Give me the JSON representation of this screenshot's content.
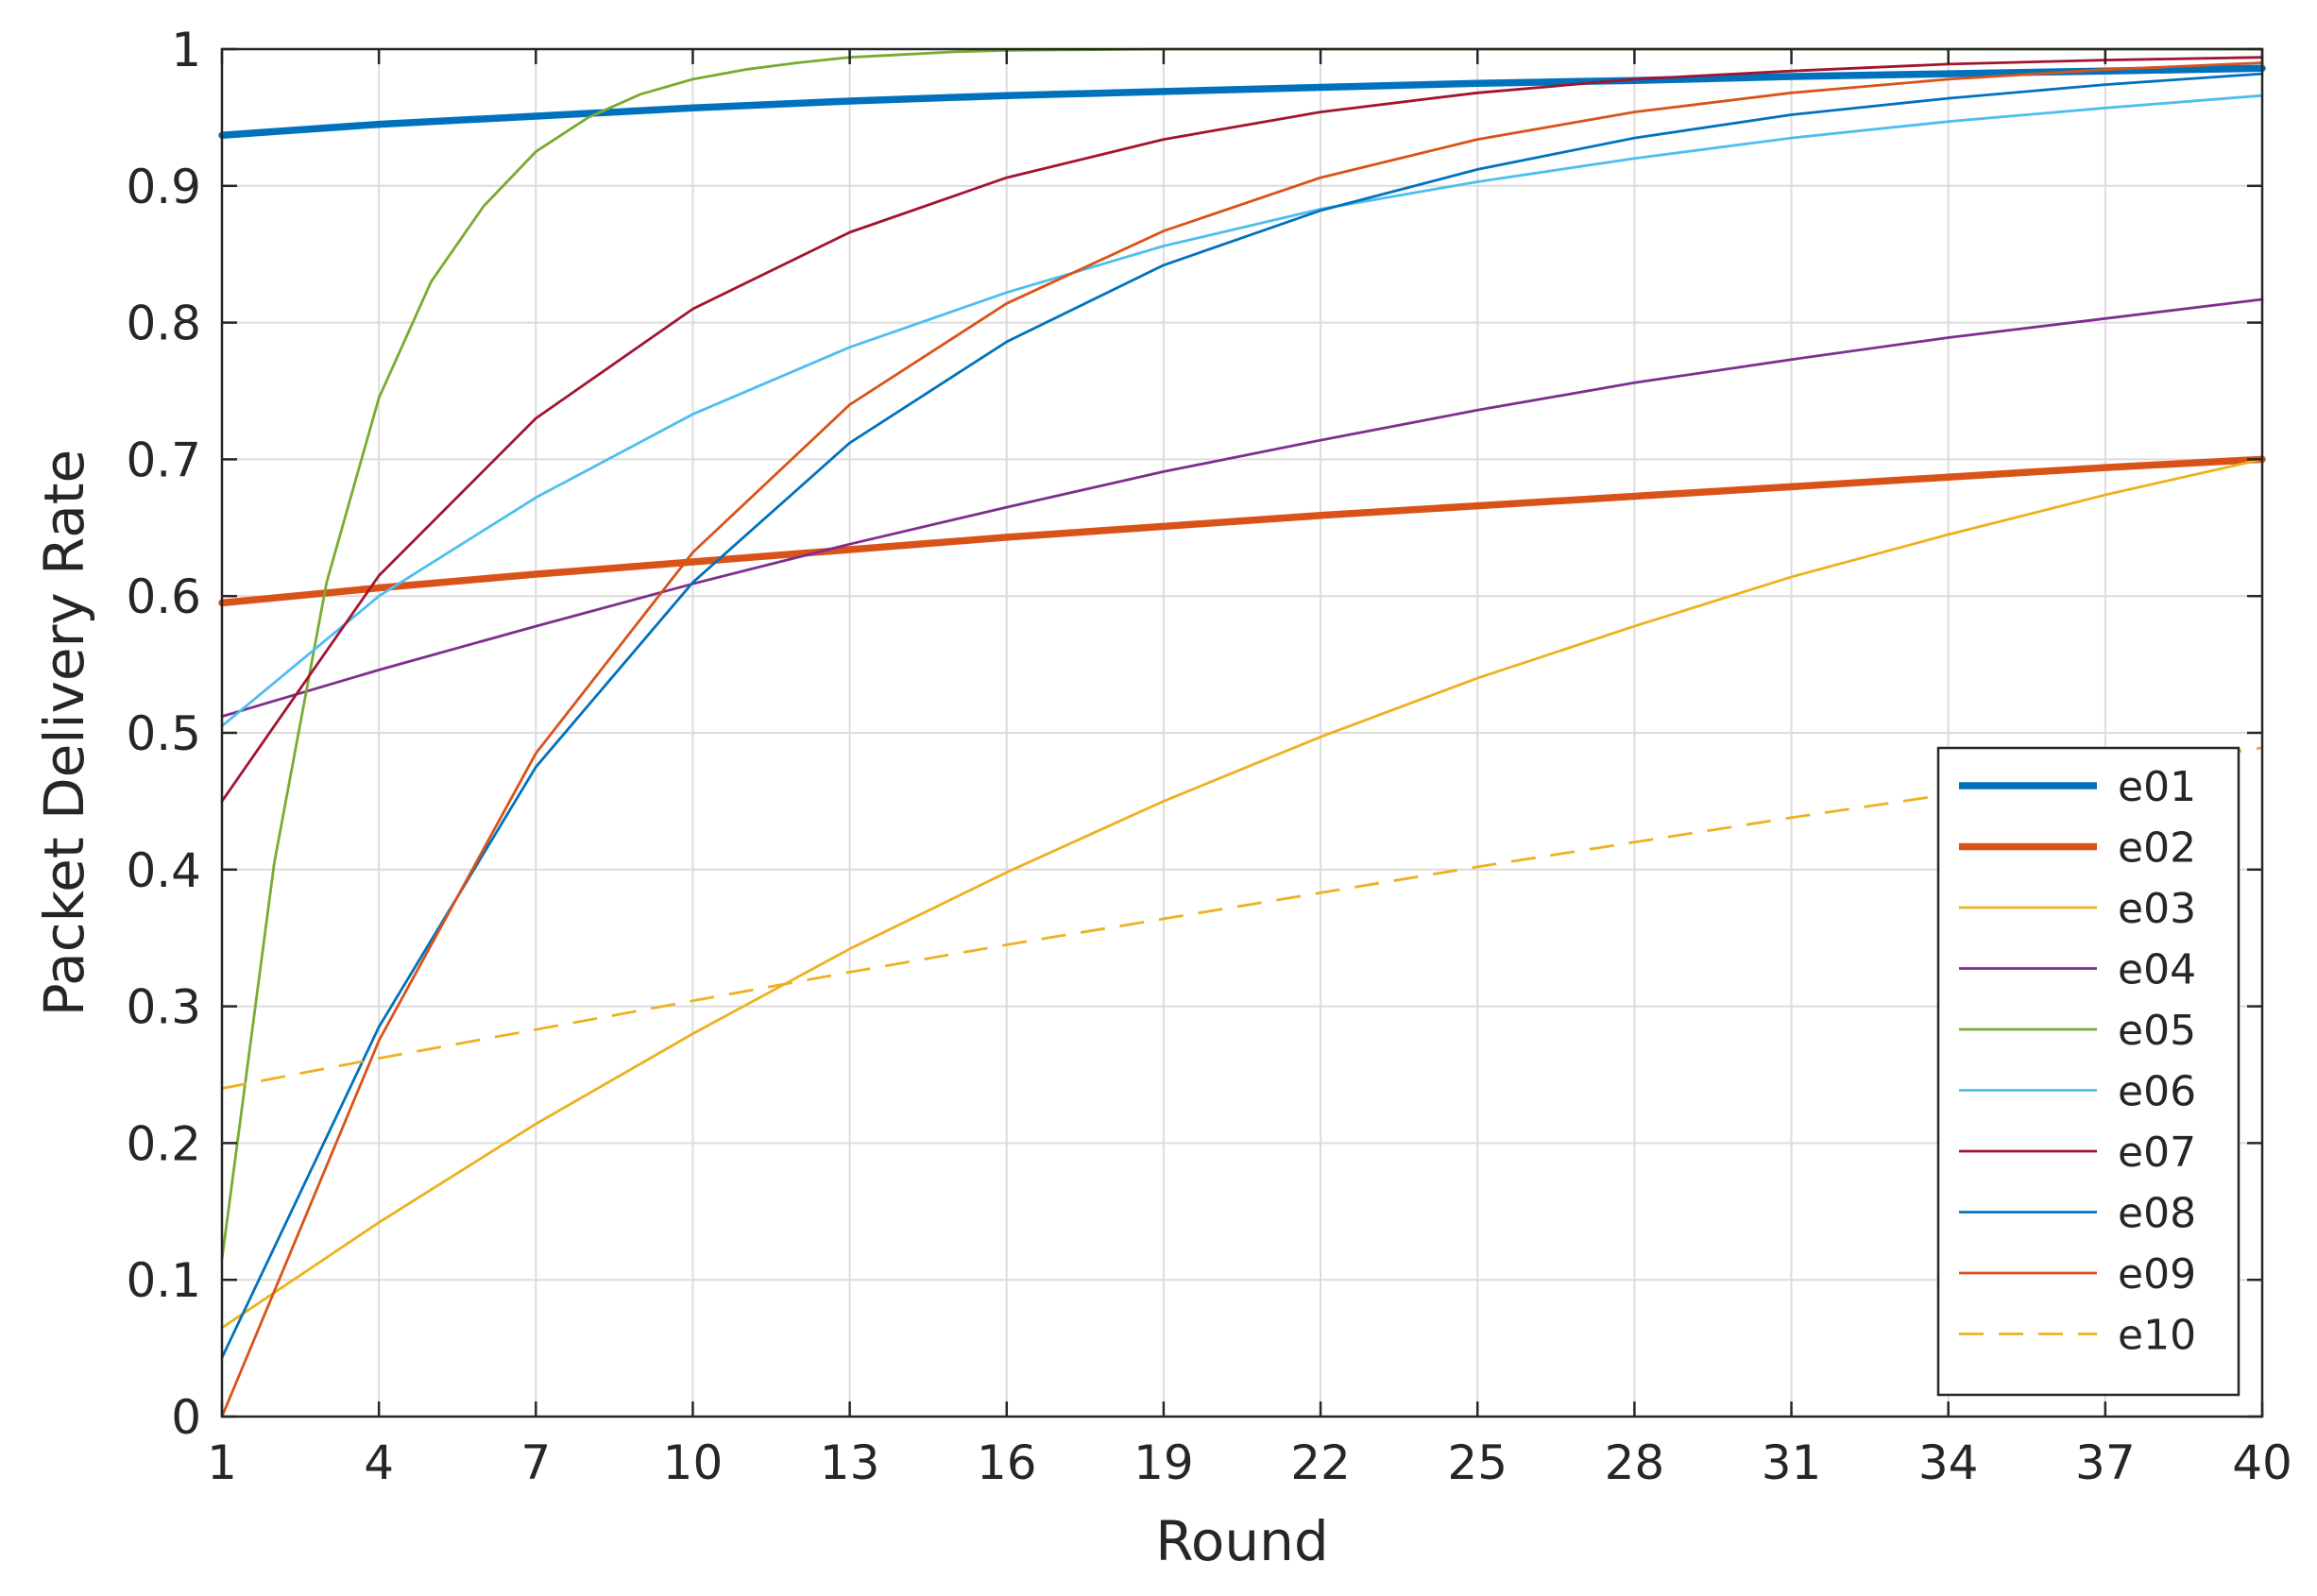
{
  "chart_data": {
    "type": "line",
    "xlabel": "Round",
    "ylabel": "Packet Delivery Rate",
    "xlim": [
      1,
      40
    ],
    "ylim": [
      0,
      1
    ],
    "xticks": [
      1,
      4,
      7,
      10,
      13,
      16,
      19,
      22,
      25,
      28,
      31,
      34,
      37,
      40
    ],
    "yticks": [
      0,
      0.1,
      0.2,
      0.3,
      0.4,
      0.5,
      0.6,
      0.7,
      0.8,
      0.9,
      1
    ],
    "ytick_labels": [
      "0",
      "0.1",
      "0.2",
      "0.3",
      "0.4",
      "0.5",
      "0.6",
      "0.7",
      "0.8",
      "0.9",
      "1"
    ],
    "grid": true,
    "legend_position": "bottom-right",
    "series": [
      {
        "name": "e01",
        "color": "#0072BD",
        "width": "thick",
        "dash": false,
        "x": [
          1,
          4,
          7,
          10,
          13,
          16,
          19,
          22,
          25,
          28,
          31,
          34,
          37,
          40
        ],
        "y": [
          0.937,
          0.945,
          0.951,
          0.957,
          0.962,
          0.966,
          0.969,
          0.972,
          0.975,
          0.977,
          0.98,
          0.982,
          0.984,
          0.986
        ]
      },
      {
        "name": "e02",
        "color": "#D95319",
        "width": "thick",
        "dash": false,
        "x": [
          1,
          4,
          7,
          10,
          13,
          16,
          19,
          22,
          25,
          28,
          31,
          34,
          37,
          40
        ],
        "y": [
          0.595,
          0.606,
          0.616,
          0.625,
          0.634,
          0.643,
          0.651,
          0.659,
          0.666,
          0.673,
          0.68,
          0.687,
          0.694,
          0.7
        ]
      },
      {
        "name": "e03",
        "color": "#EDB120",
        "width": "thin",
        "dash": false,
        "x": [
          1,
          4,
          7,
          10,
          13,
          16,
          19,
          22,
          25,
          28,
          31,
          34,
          37,
          40
        ],
        "y": [
          0.065,
          0.142,
          0.214,
          0.28,
          0.342,
          0.398,
          0.45,
          0.497,
          0.54,
          0.578,
          0.614,
          0.645,
          0.674,
          0.7
        ]
      },
      {
        "name": "e04",
        "color": "#7E2F8E",
        "width": "thin",
        "dash": false,
        "x": [
          1,
          4,
          7,
          10,
          13,
          16,
          19,
          22,
          25,
          28,
          31,
          34,
          37,
          40
        ],
        "y": [
          0.512,
          0.546,
          0.578,
          0.609,
          0.638,
          0.665,
          0.691,
          0.714,
          0.736,
          0.756,
          0.773,
          0.789,
          0.803,
          0.817
        ]
      },
      {
        "name": "e05",
        "color": "#77AC30",
        "width": "thin",
        "dash": false,
        "x": [
          1,
          2,
          3,
          4,
          5,
          6,
          7,
          8,
          9,
          10,
          11,
          12,
          13,
          14,
          15,
          16,
          19,
          22,
          25,
          28,
          31,
          34,
          37,
          40
        ],
        "y": [
          0.115,
          0.405,
          0.61,
          0.745,
          0.83,
          0.885,
          0.925,
          0.95,
          0.967,
          0.978,
          0.985,
          0.99,
          0.994,
          0.996,
          0.998,
          0.999,
          1.0,
          1.0,
          1.0,
          1.0,
          1.0,
          1.0,
          1.0,
          1.0
        ]
      },
      {
        "name": "e06",
        "color": "#4DBEEE",
        "width": "thin",
        "dash": false,
        "x": [
          1,
          4,
          7,
          10,
          13,
          16,
          19,
          22,
          25,
          28,
          31,
          34,
          37,
          40
        ],
        "y": [
          0.505,
          0.6,
          0.672,
          0.733,
          0.782,
          0.822,
          0.856,
          0.883,
          0.903,
          0.92,
          0.935,
          0.947,
          0.957,
          0.966
        ]
      },
      {
        "name": "e07",
        "color": "#A2142F",
        "width": "thin",
        "dash": false,
        "x": [
          1,
          4,
          7,
          10,
          13,
          16,
          19,
          22,
          25,
          28,
          31,
          34,
          37,
          40
        ],
        "y": [
          0.45,
          0.615,
          0.73,
          0.81,
          0.866,
          0.906,
          0.934,
          0.954,
          0.968,
          0.978,
          0.984,
          0.989,
          0.992,
          0.994
        ]
      },
      {
        "name": "e08",
        "color": "#0072BD",
        "width": "thin",
        "dash": false,
        "x": [
          1,
          4,
          7,
          10,
          13,
          16,
          19,
          22,
          25,
          28,
          31,
          34,
          37,
          40
        ],
        "y": [
          0.043,
          0.285,
          0.475,
          0.61,
          0.712,
          0.786,
          0.842,
          0.882,
          0.912,
          0.935,
          0.952,
          0.964,
          0.974,
          0.982
        ]
      },
      {
        "name": "e09",
        "color": "#D95319",
        "width": "thin",
        "dash": false,
        "x": [
          1,
          4,
          7,
          10,
          13,
          16,
          19,
          22,
          25,
          28,
          31,
          34,
          37,
          40
        ],
        "y": [
          0.0,
          0.275,
          0.485,
          0.632,
          0.74,
          0.814,
          0.867,
          0.906,
          0.934,
          0.954,
          0.968,
          0.978,
          0.985,
          0.99
        ]
      },
      {
        "name": "e10",
        "color": "#EDB120",
        "width": "thin",
        "dash": true,
        "x": [
          1,
          4,
          7,
          10,
          13,
          16,
          19,
          22,
          25,
          28,
          31,
          34,
          37,
          40
        ],
        "y": [
          0.24,
          0.262,
          0.283,
          0.304,
          0.325,
          0.345,
          0.364,
          0.383,
          0.402,
          0.42,
          0.438,
          0.455,
          0.472,
          0.489
        ]
      }
    ]
  }
}
